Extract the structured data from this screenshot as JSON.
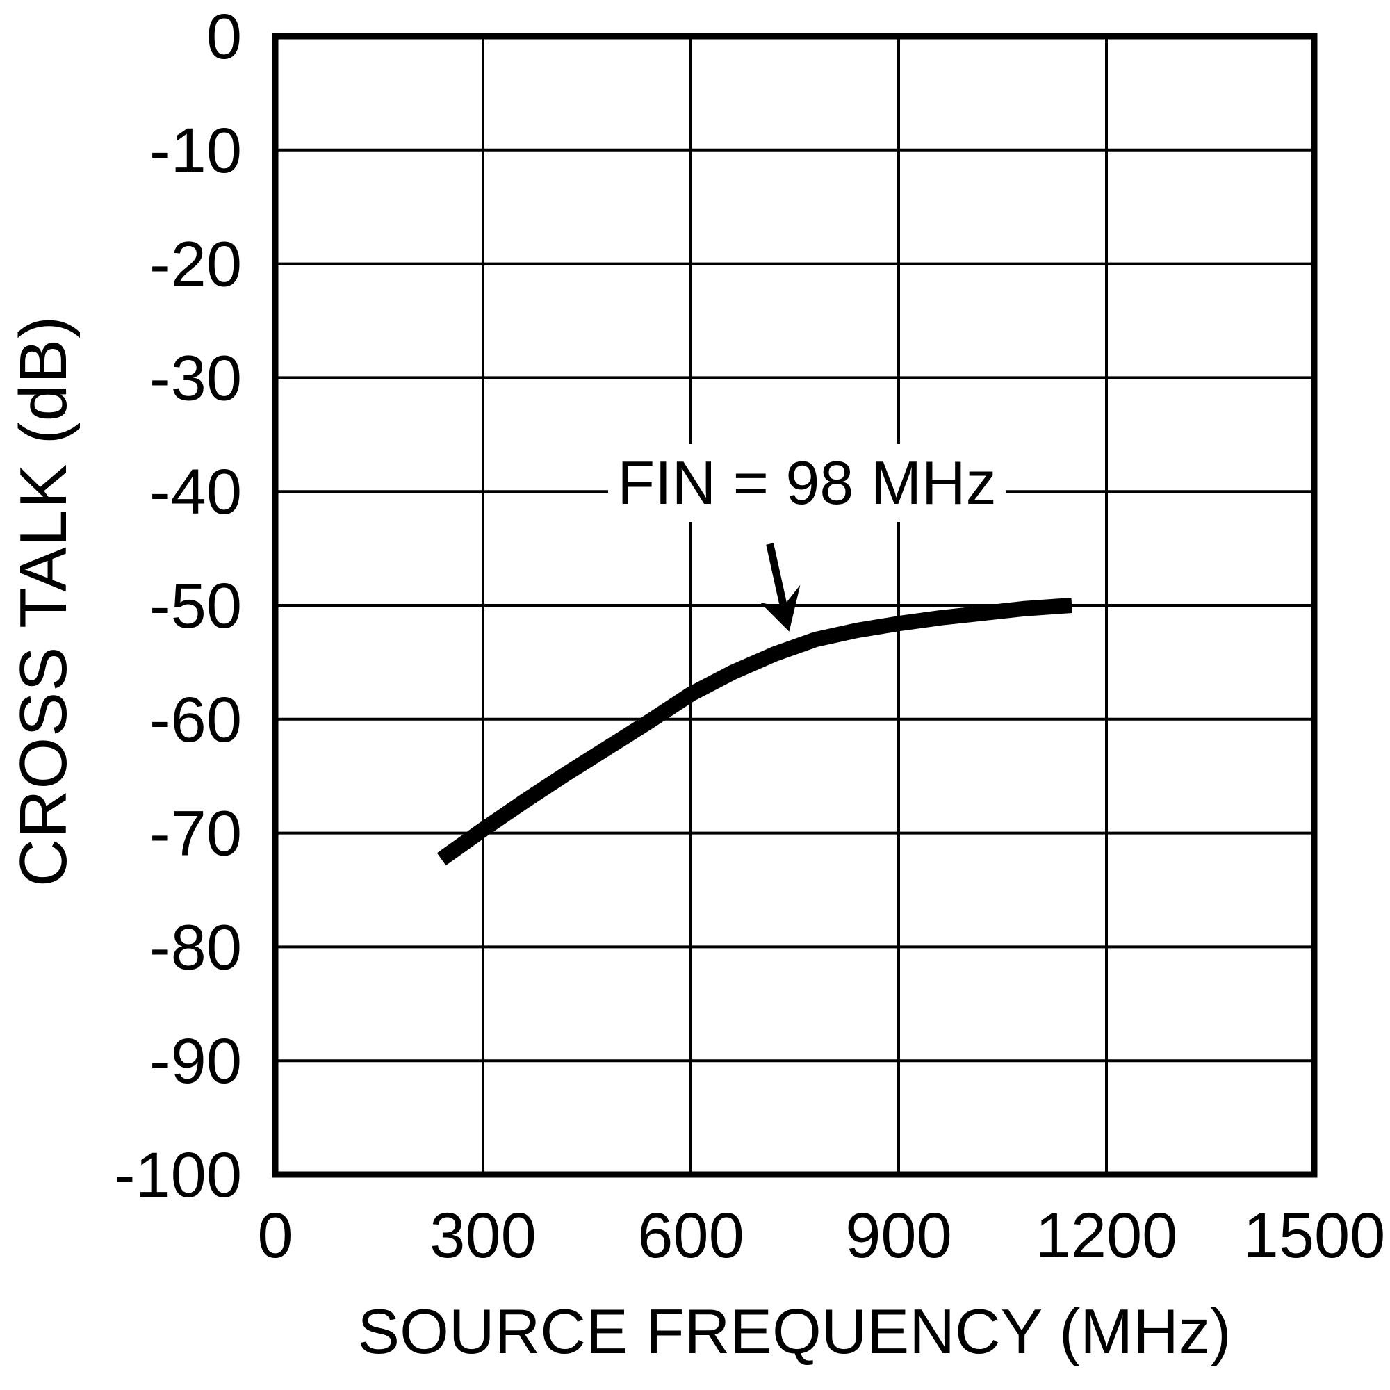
{
  "page": {
    "background": "#ffffff",
    "foreground": "#000000"
  },
  "chart_data": {
    "type": "line",
    "title": "",
    "xlabel": "SOURCE FREQUENCY (MHz)",
    "ylabel": "CROSS TALK (dB)",
    "xlim": [
      0,
      1500
    ],
    "ylim": [
      -100,
      0
    ],
    "x_ticks": [
      0,
      300,
      600,
      900,
      1200,
      1500
    ],
    "x_tick_labels": [
      "0",
      "300",
      "600",
      "900",
      "1200",
      "1500"
    ],
    "y_ticks": [
      0,
      -10,
      -20,
      -30,
      -40,
      -50,
      -60,
      -70,
      -80,
      -90,
      -100
    ],
    "y_tick_labels": [
      "0",
      "-10",
      "-20",
      "-30",
      "-40",
      "-50",
      "-60",
      "-70",
      "-80",
      "-90",
      "-100"
    ],
    "grid": "both",
    "legend": "none",
    "line_color": "#000000",
    "series": [
      {
        "name": "FIN = 98 MHz",
        "points": [
          [
            240,
            -72.3
          ],
          [
            300,
            -69.7
          ],
          [
            360,
            -67.2
          ],
          [
            420,
            -64.8
          ],
          [
            480,
            -62.5
          ],
          [
            540,
            -60.2
          ],
          [
            600,
            -57.8
          ],
          [
            660,
            -55.9
          ],
          [
            720,
            -54.3
          ],
          [
            780,
            -53.0
          ],
          [
            840,
            -52.2
          ],
          [
            900,
            -51.6
          ],
          [
            960,
            -51.1
          ],
          [
            1020,
            -50.7
          ],
          [
            1080,
            -50.3
          ],
          [
            1150,
            -50.0
          ]
        ]
      }
    ],
    "annotation": {
      "text": "FIN = 98 MHz",
      "arrow_from": [
        714,
        -44.6
      ],
      "arrow_to": [
        742,
        -52.3
      ]
    }
  }
}
